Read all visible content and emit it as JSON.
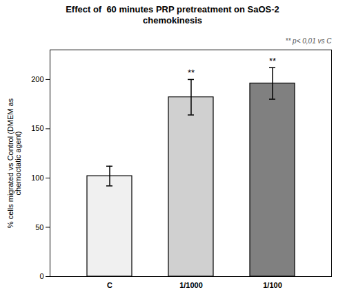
{
  "chart_data": {
    "type": "bar",
    "title": "Effect of  60 minutes PRP pretreatment on SaOS-2\nchemokinesis",
    "categories": [
      "C",
      "1/1000",
      "1/100"
    ],
    "values": [
      102,
      182,
      196
    ],
    "errors": [
      10,
      18,
      16
    ],
    "colors": [
      "#f0f0f0",
      "#d0d0d0",
      "#808080"
    ],
    "significance_labels": [
      null,
      "**",
      "**"
    ],
    "annotation": "** p< 0,01 vs C",
    "ylabel": "% cells migrated vs Control (DMEM as\nchemoctatic agent)",
    "ylim": [
      0,
      230
    ],
    "yticks": [
      0,
      50,
      100,
      150,
      200
    ],
    "grid": false
  }
}
